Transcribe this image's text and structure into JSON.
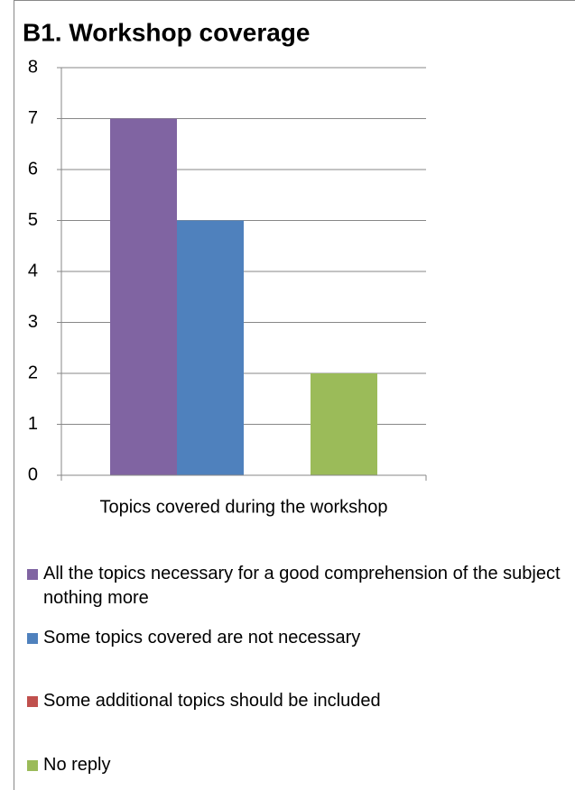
{
  "chart_data": {
    "type": "bar",
    "title": "B1. Workshop coverage",
    "categories": [
      "Topics covered during the workshop"
    ],
    "series": [
      {
        "name": "All the topics necessary for a good comprehension of the subject nothing more",
        "color": "#8064a2",
        "values": [
          7
        ]
      },
      {
        "name": "Some topics covered are not necessary",
        "color": "#4f81bd",
        "values": [
          5
        ]
      },
      {
        "name": "Some additional topics should be included",
        "color": "#c0504d",
        "values": [
          0
        ]
      },
      {
        "name": "No reply",
        "color": "#9bbb59",
        "values": [
          2
        ]
      }
    ],
    "ylim": [
      0,
      8
    ],
    "yticks": [
      0,
      1,
      2,
      3,
      4,
      5,
      6,
      7,
      8
    ],
    "grid": true,
    "legend": "bottom"
  }
}
